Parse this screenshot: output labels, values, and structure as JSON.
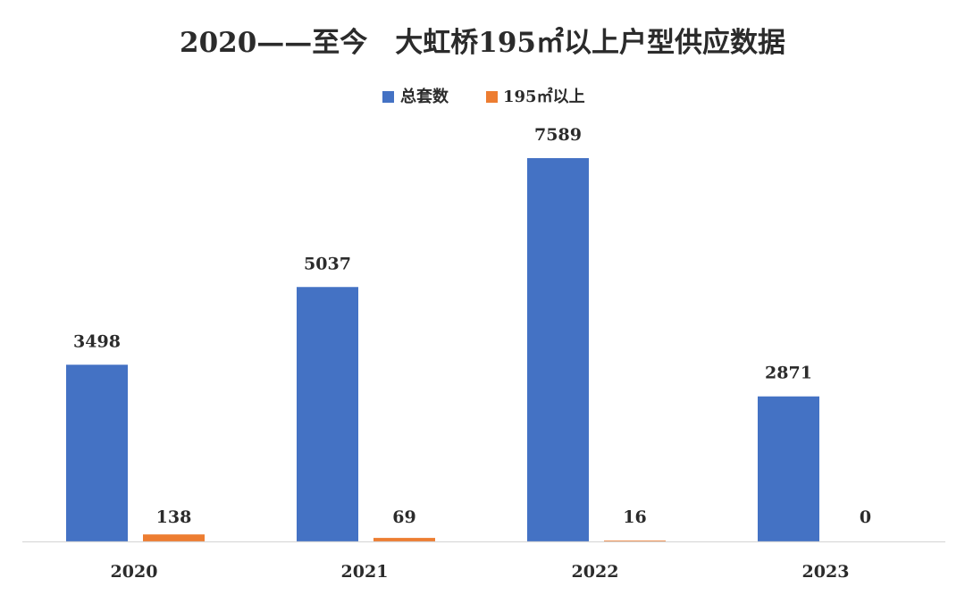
{
  "chart_data": {
    "type": "bar",
    "title": "2020——至今　大虹桥195㎡以上户型供应数据",
    "categories": [
      "2020",
      "2021",
      "2022",
      "2023"
    ],
    "series": [
      {
        "name": "总套数",
        "values": [
          3498,
          5037,
          7589,
          2871
        ],
        "labels": [
          "3498",
          "5037",
          "7589",
          "2871"
        ],
        "color": "#4472C4"
      },
      {
        "name": "195㎡以上",
        "values": [
          138,
          69,
          16,
          0
        ],
        "labels": [
          "138",
          "69",
          "16",
          "0"
        ],
        "color": "#ED7D31"
      }
    ],
    "xlabel": "",
    "ylabel": "",
    "ylim": [
      0,
      7589
    ],
    "grid": false,
    "legend": "top-center",
    "axis_color": "#d9d9d9"
  }
}
